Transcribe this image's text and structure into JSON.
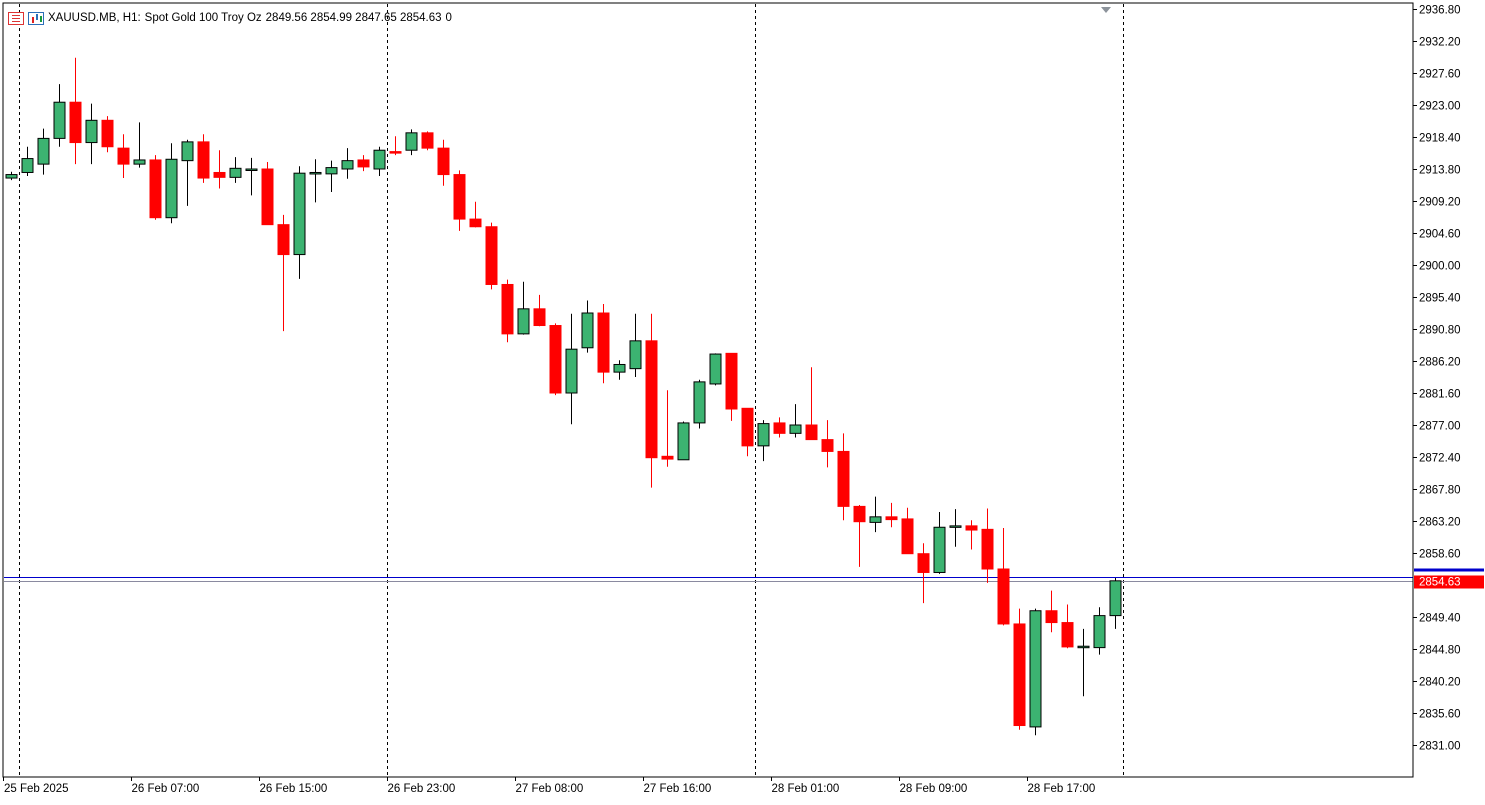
{
  "header": {
    "symbol": "XAUUSD.MB, H1:",
    "description": "Spot Gold 100 Troy Oz",
    "ohlc": "2849.56 2854.99 2847.65 2854.63",
    "volume": "0",
    "list_icon": "quick-list-icon",
    "chart_icon": "chart-type-icon"
  },
  "price_label": "2854.63",
  "colors": {
    "bull": "#3cb371",
    "bear": "#ff0000",
    "grid": "#000000",
    "price_line": "#0000cc",
    "axis_text": "#000000",
    "background": "#ffffff"
  },
  "chart_data": {
    "type": "candlestick",
    "symbol": "XAUUSD.MB",
    "timeframe": "H1",
    "ylim": [
      2826.5,
      2936.8
    ],
    "y_ticks": [
      "2936.80",
      "2932.20",
      "2927.60",
      "2923.00",
      "2918.40",
      "2913.80",
      "2909.20",
      "2904.60",
      "2900.00",
      "2895.40",
      "2890.80",
      "2886.20",
      "2881.60",
      "2877.00",
      "2872.40",
      "2867.80",
      "2863.20",
      "2858.60",
      "2854.63",
      "2849.40",
      "2844.80",
      "2840.20",
      "2835.60",
      "2831.00"
    ],
    "x_labels": [
      {
        "label": "25 Feb 2025",
        "index": -1
      },
      {
        "label": "26 Feb 07:00",
        "index": 7
      },
      {
        "label": "26 Feb 15:00",
        "index": 15
      },
      {
        "label": "26 Feb 23:00",
        "index": 23
      },
      {
        "label": "27 Feb 08:00",
        "index": 31
      },
      {
        "label": "27 Feb 16:00",
        "index": 39
      },
      {
        "label": "28 Feb 01:00",
        "index": 47
      },
      {
        "label": "28 Feb 09:00",
        "index": 55
      },
      {
        "label": "28 Feb 17:00",
        "index": 63
      }
    ],
    "period_separators": [
      1,
      24,
      47,
      70
    ],
    "bid_line": 2854.63,
    "ask_line": 2855.2,
    "grid": false,
    "candles": [
      {
        "o": 2912.5,
        "h": 2913.4,
        "l": 2912.2,
        "c": 2913.0
      },
      {
        "o": 2913.3,
        "h": 2917.0,
        "l": 2912.8,
        "c": 2915.3
      },
      {
        "o": 2914.5,
        "h": 2919.6,
        "l": 2913.0,
        "c": 2918.2
      },
      {
        "o": 2918.2,
        "h": 2926.0,
        "l": 2917.0,
        "c": 2923.4
      },
      {
        "o": 2923.4,
        "h": 2929.8,
        "l": 2914.5,
        "c": 2917.6
      },
      {
        "o": 2917.6,
        "h": 2923.2,
        "l": 2914.5,
        "c": 2920.8
      },
      {
        "o": 2920.8,
        "h": 2921.4,
        "l": 2916.2,
        "c": 2917.0
      },
      {
        "o": 2916.8,
        "h": 2918.8,
        "l": 2912.5,
        "c": 2914.5
      },
      {
        "o": 2914.5,
        "h": 2920.5,
        "l": 2914.0,
        "c": 2915.1
      },
      {
        "o": 2915.1,
        "h": 2915.8,
        "l": 2906.5,
        "c": 2906.8
      },
      {
        "o": 2906.8,
        "h": 2917.5,
        "l": 2906.0,
        "c": 2915.2
      },
      {
        "o": 2915.0,
        "h": 2918.0,
        "l": 2908.5,
        "c": 2917.7
      },
      {
        "o": 2917.7,
        "h": 2918.8,
        "l": 2911.8,
        "c": 2912.5
      },
      {
        "o": 2913.3,
        "h": 2916.5,
        "l": 2911.0,
        "c": 2912.6
      },
      {
        "o": 2912.6,
        "h": 2915.5,
        "l": 2911.8,
        "c": 2913.9
      },
      {
        "o": 2913.8,
        "h": 2915.4,
        "l": 2910.0,
        "c": 2913.8
      },
      {
        "o": 2913.8,
        "h": 2914.8,
        "l": 2905.8,
        "c": 2905.8
      },
      {
        "o": 2905.8,
        "h": 2907.2,
        "l": 2890.5,
        "c": 2901.5
      },
      {
        "o": 2901.5,
        "h": 2914.2,
        "l": 2898.0,
        "c": 2913.2
      },
      {
        "o": 2913.2,
        "h": 2915.2,
        "l": 2909.0,
        "c": 2913.3
      },
      {
        "o": 2913.1,
        "h": 2915.0,
        "l": 2910.5,
        "c": 2914.0
      },
      {
        "o": 2913.8,
        "h": 2916.8,
        "l": 2912.4,
        "c": 2915.0
      },
      {
        "o": 2915.1,
        "h": 2915.8,
        "l": 2913.5,
        "c": 2914.1
      },
      {
        "o": 2913.8,
        "h": 2917.0,
        "l": 2912.8,
        "c": 2916.5
      },
      {
        "o": 2916.3,
        "h": 2918.5,
        "l": 2915.8,
        "c": 2916.2
      },
      {
        "o": 2916.5,
        "h": 2919.5,
        "l": 2915.8,
        "c": 2919.0
      },
      {
        "o": 2919.0,
        "h": 2919.2,
        "l": 2916.5,
        "c": 2916.8
      },
      {
        "o": 2916.8,
        "h": 2918.0,
        "l": 2911.4,
        "c": 2913.0
      },
      {
        "o": 2913.0,
        "h": 2913.6,
        "l": 2904.9,
        "c": 2906.6
      },
      {
        "o": 2906.6,
        "h": 2909.1,
        "l": 2905.4,
        "c": 2905.5
      },
      {
        "o": 2905.5,
        "h": 2906.1,
        "l": 2896.5,
        "c": 2897.2
      },
      {
        "o": 2897.2,
        "h": 2897.9,
        "l": 2888.9,
        "c": 2890.1
      },
      {
        "o": 2890.1,
        "h": 2897.6,
        "l": 2890.0,
        "c": 2893.7
      },
      {
        "o": 2893.7,
        "h": 2895.7,
        "l": 2891.2,
        "c": 2891.3
      },
      {
        "o": 2891.3,
        "h": 2891.6,
        "l": 2881.3,
        "c": 2881.6
      },
      {
        "o": 2881.6,
        "h": 2893.0,
        "l": 2877.1,
        "c": 2887.9
      },
      {
        "o": 2888.1,
        "h": 2894.9,
        "l": 2887.4,
        "c": 2893.1
      },
      {
        "o": 2893.1,
        "h": 2894.4,
        "l": 2883.0,
        "c": 2884.6
      },
      {
        "o": 2884.6,
        "h": 2886.3,
        "l": 2883.5,
        "c": 2885.7
      },
      {
        "o": 2885.1,
        "h": 2893.0,
        "l": 2883.9,
        "c": 2889.1
      },
      {
        "o": 2889.1,
        "h": 2893.0,
        "l": 2868.0,
        "c": 2872.3
      },
      {
        "o": 2872.5,
        "h": 2882.0,
        "l": 2871.0,
        "c": 2872.1
      },
      {
        "o": 2872.0,
        "h": 2877.5,
        "l": 2872.0,
        "c": 2877.3
      },
      {
        "o": 2877.3,
        "h": 2883.5,
        "l": 2876.5,
        "c": 2883.2
      },
      {
        "o": 2882.9,
        "h": 2887.3,
        "l": 2882.7,
        "c": 2887.2
      },
      {
        "o": 2887.3,
        "h": 2887.3,
        "l": 2877.6,
        "c": 2879.3
      },
      {
        "o": 2879.4,
        "h": 2879.4,
        "l": 2872.5,
        "c": 2874.0
      },
      {
        "o": 2874.0,
        "h": 2877.7,
        "l": 2871.8,
        "c": 2877.2
      },
      {
        "o": 2877.3,
        "h": 2878.1,
        "l": 2875.2,
        "c": 2875.8
      },
      {
        "o": 2875.8,
        "h": 2880.0,
        "l": 2875.2,
        "c": 2877.0
      },
      {
        "o": 2877.0,
        "h": 2885.3,
        "l": 2874.9,
        "c": 2874.9
      },
      {
        "o": 2874.9,
        "h": 2877.7,
        "l": 2870.9,
        "c": 2873.2
      },
      {
        "o": 2873.2,
        "h": 2875.8,
        "l": 2863.3,
        "c": 2865.3
      },
      {
        "o": 2865.3,
        "h": 2865.5,
        "l": 2856.6,
        "c": 2863.1
      },
      {
        "o": 2863.0,
        "h": 2866.7,
        "l": 2861.6,
        "c": 2863.8
      },
      {
        "o": 2863.8,
        "h": 2865.8,
        "l": 2862.3,
        "c": 2863.4
      },
      {
        "o": 2863.5,
        "h": 2865.1,
        "l": 2858.5,
        "c": 2858.5
      },
      {
        "o": 2858.5,
        "h": 2860.0,
        "l": 2851.4,
        "c": 2855.8
      },
      {
        "o": 2855.8,
        "h": 2864.5,
        "l": 2855.6,
        "c": 2862.3
      },
      {
        "o": 2862.3,
        "h": 2864.9,
        "l": 2859.5,
        "c": 2862.5
      },
      {
        "o": 2862.5,
        "h": 2863.3,
        "l": 2859.1,
        "c": 2861.9
      },
      {
        "o": 2862.0,
        "h": 2865.0,
        "l": 2854.3,
        "c": 2856.3
      },
      {
        "o": 2856.3,
        "h": 2862.2,
        "l": 2848.2,
        "c": 2848.4
      },
      {
        "o": 2848.4,
        "h": 2850.6,
        "l": 2833.2,
        "c": 2833.8
      },
      {
        "o": 2833.6,
        "h": 2850.6,
        "l": 2832.4,
        "c": 2850.3
      },
      {
        "o": 2850.3,
        "h": 2853.2,
        "l": 2847.2,
        "c": 2848.6
      },
      {
        "o": 2848.6,
        "h": 2851.2,
        "l": 2844.9,
        "c": 2845.1
      },
      {
        "o": 2845.0,
        "h": 2847.7,
        "l": 2838.0,
        "c": 2845.2
      },
      {
        "o": 2845.0,
        "h": 2850.8,
        "l": 2844.0,
        "c": 2849.6
      },
      {
        "o": 2849.6,
        "h": 2855.0,
        "l": 2847.7,
        "c": 2854.6
      }
    ]
  }
}
